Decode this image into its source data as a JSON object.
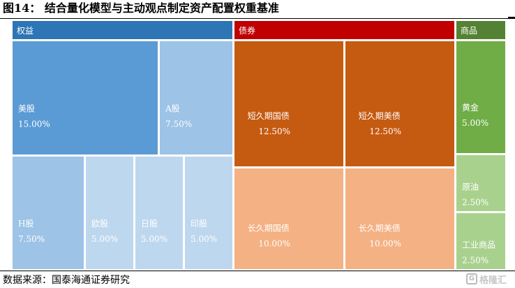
{
  "figure": {
    "title": "图14：   结合量化模型与主动观点制定资产配置权重基准",
    "source": "数据来源：国泰海通证券研究",
    "watermark": "格隆汇"
  },
  "chart_data": {
    "type": "treemap",
    "groups": [
      {
        "name": "权益",
        "color": "#2E75B6",
        "items": [
          {
            "name": "美股",
            "value": 15.0,
            "label": "15.00%",
            "color": "#5B9BD5"
          },
          {
            "name": "A股",
            "value": 7.5,
            "label": "7.50%",
            "color": "#9DC3E6"
          },
          {
            "name": "H股",
            "value": 7.5,
            "label": "7.50%",
            "color": "#9DC3E6"
          },
          {
            "name": "欧股",
            "value": 5.0,
            "label": "5.00%",
            "color": "#BDD7EE"
          },
          {
            "name": "日股",
            "value": 5.0,
            "label": "5.00%",
            "color": "#BDD7EE"
          },
          {
            "name": "印股",
            "value": 5.0,
            "label": "5.00%",
            "color": "#BDD7EE"
          }
        ]
      },
      {
        "name": "债券",
        "color": "#C00000",
        "items": [
          {
            "name": "短久期国债",
            "value": 12.5,
            "label": "12.50%",
            "color": "#C55A11"
          },
          {
            "name": "短久期美债",
            "value": 12.5,
            "label": "12.50%",
            "color": "#C55A11"
          },
          {
            "name": "长久期国债",
            "value": 10.0,
            "label": "10.00%",
            "color": "#F4B183"
          },
          {
            "name": "长久期美债",
            "value": 10.0,
            "label": "10.00%",
            "color": "#F4B183"
          }
        ]
      },
      {
        "name": "商品",
        "color": "#548235",
        "items": [
          {
            "name": "黄金",
            "value": 5.0,
            "label": "5.00%",
            "color": "#70AD47"
          },
          {
            "name": "原油",
            "value": 2.5,
            "label": "2.50%",
            "color": "#A9D18E"
          },
          {
            "name": "工业商品",
            "value": 2.5,
            "label": "2.50%",
            "color": "#A9D18E"
          }
        ]
      }
    ]
  }
}
